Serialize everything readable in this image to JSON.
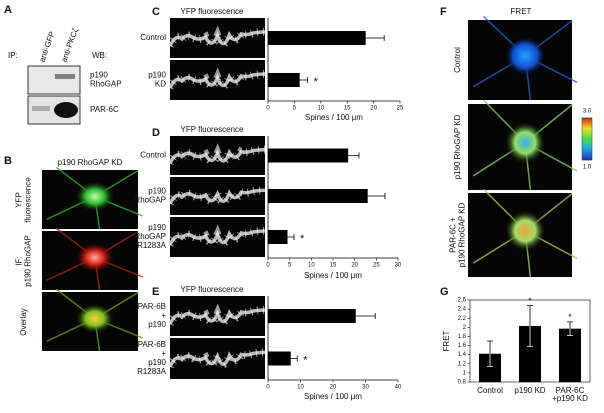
{
  "panels": {
    "A": {
      "letter": "A",
      "ip_label": "IP:",
      "lanes": [
        "anti-GFP",
        "anti-PKCζ"
      ],
      "wb_label": "WB:",
      "blots": [
        [
          "p190",
          "RhoGAP"
        ],
        [
          "PAR-6C"
        ]
      ]
    },
    "B": {
      "letter": "B",
      "title": "p190 RhoGAP KD",
      "rows": [
        [
          "YFP",
          "fluorescence"
        ],
        [
          "IF:",
          "p190 RhoGAP"
        ],
        [
          "Overlay"
        ]
      ]
    },
    "F": {
      "letter": "F",
      "title": "FRET",
      "rows": [
        [
          "Control"
        ],
        [
          "p190 RhoGAP KD"
        ],
        [
          "PAR-6C +",
          "p190 RhoGAP KD"
        ]
      ],
      "colorbar": {
        "lim": [
          1,
          3
        ],
        "ticks": [
          {
            "value": 3,
            "label": "3.0"
          },
          {
            "value": 1,
            "label": "1.0"
          }
        ]
      }
    }
  },
  "chart_data": [
    {
      "type": "barh",
      "panel": "C",
      "title": "YFP fluorescence",
      "categories": [
        [
          "Control"
        ],
        [
          "p190",
          "KD"
        ]
      ],
      "values": [
        18.5,
        6
      ],
      "errors": [
        3.5,
        1.5
      ],
      "significance": [
        null,
        "*"
      ],
      "color": "#000000",
      "xlim": [
        0,
        25
      ],
      "xticks": [
        0,
        5,
        10,
        15,
        20,
        25
      ],
      "xlabel": "Spines / 100 μm"
    },
    {
      "type": "barh",
      "panel": "D",
      "title": "YFP fluorescence",
      "categories": [
        [
          "Control"
        ],
        [
          "p190",
          "RhoGAP"
        ],
        [
          "p190",
          "RhoGAP",
          "R1283A"
        ]
      ],
      "values": [
        18.5,
        23,
        4.5
      ],
      "errors": [
        2.5,
        4,
        1.5
      ],
      "significance": [
        null,
        null,
        "*"
      ],
      "color": "#000000",
      "xlim": [
        0,
        30
      ],
      "xticks": [
        0,
        5,
        10,
        15,
        20,
        25,
        30
      ],
      "xlabel": "Spines / 100 μm"
    },
    {
      "type": "barh",
      "panel": "E",
      "title": "YFP fluorescence",
      "categories": [
        [
          "PAR-6B",
          "+",
          "p190"
        ],
        [
          "PAR-6B",
          "+",
          "p190",
          "R1283A"
        ]
      ],
      "values": [
        27,
        7
      ],
      "errors": [
        6,
        2
      ],
      "significance": [
        null,
        "*"
      ],
      "color": "#000000",
      "xlim": [
        0,
        40
      ],
      "xticks": [
        0,
        10,
        20,
        30,
        40
      ],
      "xlabel": "Spines / 100 μm"
    },
    {
      "type": "bar",
      "panel": "G",
      "categories": [
        [
          "Control"
        ],
        [
          "p190 KD"
        ],
        [
          "PAR-6C",
          "+p190 KD"
        ]
      ],
      "values": [
        1.42,
        2.03,
        1.97
      ],
      "errors": [
        0.28,
        0.45,
        0.15
      ],
      "significance": [
        null,
        "*",
        "*"
      ],
      "color": "#000000",
      "ylim": [
        0.8,
        2.6
      ],
      "yticks": [
        0.8,
        1,
        1.2,
        1.4,
        1.6,
        1.8,
        2,
        2.2,
        2.4,
        2.6
      ],
      "ylabel": "FRET"
    }
  ]
}
